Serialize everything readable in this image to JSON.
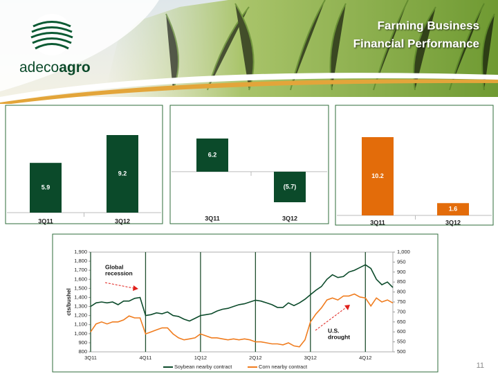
{
  "header": {
    "title_lines": [
      "Farming Business",
      "Financial Performance"
    ],
    "logo": [
      "adeco",
      "agro"
    ]
  },
  "page_number": 11,
  "chart_data": [
    {
      "type": "bar",
      "categories": [
        "3Q11",
        "3Q12"
      ],
      "values": [
        5.9,
        9.2
      ],
      "color": "#0b4a2a"
    },
    {
      "type": "bar",
      "categories": [
        "3Q11",
        "3Q12"
      ],
      "values": [
        6.2,
        -5.7
      ],
      "value_labels": [
        "6.2",
        "(5.7)"
      ],
      "color": "#0b4a2a"
    },
    {
      "type": "bar",
      "categories": [
        "3Q11",
        "3Q12"
      ],
      "values": [
        10.2,
        1.6
      ],
      "color": "#e36c0a"
    },
    {
      "type": "line",
      "y_label": "cts/bushel",
      "x": [
        0,
        0.1,
        0.2,
        0.3,
        0.4,
        0.5,
        0.6,
        0.7,
        0.8,
        0.9,
        1.0,
        1.1,
        1.2,
        1.3,
        1.4,
        1.5,
        1.6,
        1.7,
        1.8,
        1.9,
        2.0,
        2.1,
        2.2,
        2.3,
        2.4,
        2.5,
        2.6,
        2.7,
        2.8,
        2.9,
        3.0,
        3.1,
        3.2,
        3.3,
        3.4,
        3.5,
        3.6,
        3.7,
        3.8,
        3.9,
        4.0,
        4.1,
        4.2,
        4.3,
        4.4,
        4.5,
        4.6,
        4.7,
        4.8,
        4.9,
        5.0,
        5.1,
        5.2,
        5.3,
        5.4,
        5.5
      ],
      "xlim": [
        0,
        5.5
      ],
      "xticks": [
        {
          "value": 0,
          "label": "3Q11"
        },
        {
          "value": 1,
          "label": "4Q11"
        },
        {
          "value": 2,
          "label": "1Q12"
        },
        {
          "value": 3,
          "label": "2Q12"
        },
        {
          "value": 4,
          "label": "3Q12"
        },
        {
          "value": 5,
          "label": "4Q12"
        }
      ],
      "ylim": [
        800,
        1900
      ],
      "yticks": [
        800,
        900,
        {
          "value": 1000,
          "label": "1,000"
        },
        {
          "value": 1100,
          "label": "1,100"
        },
        {
          "value": 1200,
          "label": "1,200"
        },
        {
          "value": 1300,
          "label": "1,300"
        },
        {
          "value": 1400,
          "label": "1,400"
        },
        {
          "value": 1500,
          "label": "1,500"
        },
        {
          "value": 1600,
          "label": "1,600"
        },
        {
          "value": 1700,
          "label": "1,700"
        },
        {
          "value": 1800,
          "label": "1,800"
        },
        {
          "value": 1900,
          "label": "1,900"
        }
      ],
      "y2lim": [
        500,
        1000
      ],
      "y2ticks": [
        500,
        550,
        600,
        650,
        700,
        750,
        800,
        850,
        900,
        950,
        {
          "value": 1000,
          "label": "1,000"
        }
      ],
      "series": [
        {
          "name": "Soybean nearby contract",
          "color": "#0b4a2a",
          "values": [
            1300,
            1340,
            1350,
            1340,
            1350,
            1320,
            1360,
            1360,
            1390,
            1400,
            1200,
            1210,
            1230,
            1220,
            1240,
            1200,
            1190,
            1160,
            1140,
            1170,
            1200,
            1210,
            1220,
            1250,
            1270,
            1280,
            1300,
            1320,
            1330,
            1350,
            1370,
            1360,
            1340,
            1320,
            1290,
            1290,
            1340,
            1310,
            1340,
            1380,
            1430,
            1480,
            1520,
            1600,
            1650,
            1620,
            1630,
            1680,
            1700,
            1730,
            1760,
            1720,
            1600,
            1540,
            1570,
            1510
          ]
        },
        {
          "name": "Corn nearby contract",
          "color": "#f07c1e",
          "axis": "y2",
          "values": [
            600,
            640,
            650,
            640,
            650,
            650,
            660,
            680,
            670,
            670,
            590,
            600,
            610,
            620,
            620,
            590,
            570,
            560,
            565,
            570,
            590,
            580,
            570,
            570,
            565,
            560,
            565,
            560,
            565,
            560,
            550,
            550,
            545,
            540,
            540,
            535,
            545,
            530,
            525,
            560,
            650,
            690,
            720,
            760,
            770,
            760,
            780,
            780,
            790,
            775,
            770,
            730,
            770,
            750,
            760,
            745
          ]
        }
      ],
      "annotations": [
        {
          "lines": [
            "Global",
            "recession"
          ]
        },
        {
          "lines": [
            "U.S.",
            "drought"
          ]
        }
      ]
    }
  ]
}
